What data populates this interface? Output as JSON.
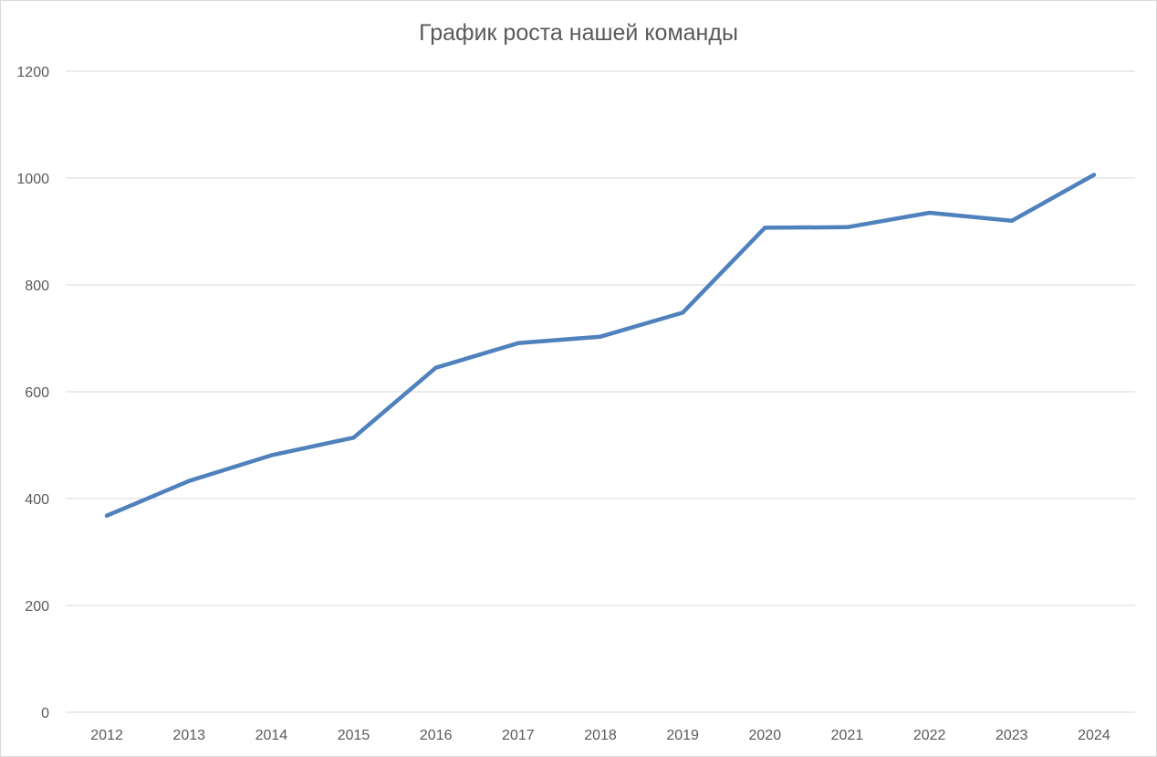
{
  "chart_data": {
    "type": "line",
    "title": "График роста нашей команды",
    "xlabel": "",
    "ylabel": "",
    "categories": [
      "2012",
      "2013",
      "2014",
      "2015",
      "2016",
      "2017",
      "2018",
      "2019",
      "2020",
      "2021",
      "2022",
      "2023",
      "2024"
    ],
    "series": [
      {
        "values": [
          368,
          433,
          481,
          514,
          645,
          691,
          703,
          748,
          907,
          908,
          935,
          920,
          1006
        ],
        "color": "#4f81bd"
      }
    ],
    "ylim": [
      0,
      1200
    ],
    "yticks": [
      0,
      200,
      400,
      600,
      800,
      1000,
      1200
    ],
    "grid": true,
    "legend": "none"
  }
}
